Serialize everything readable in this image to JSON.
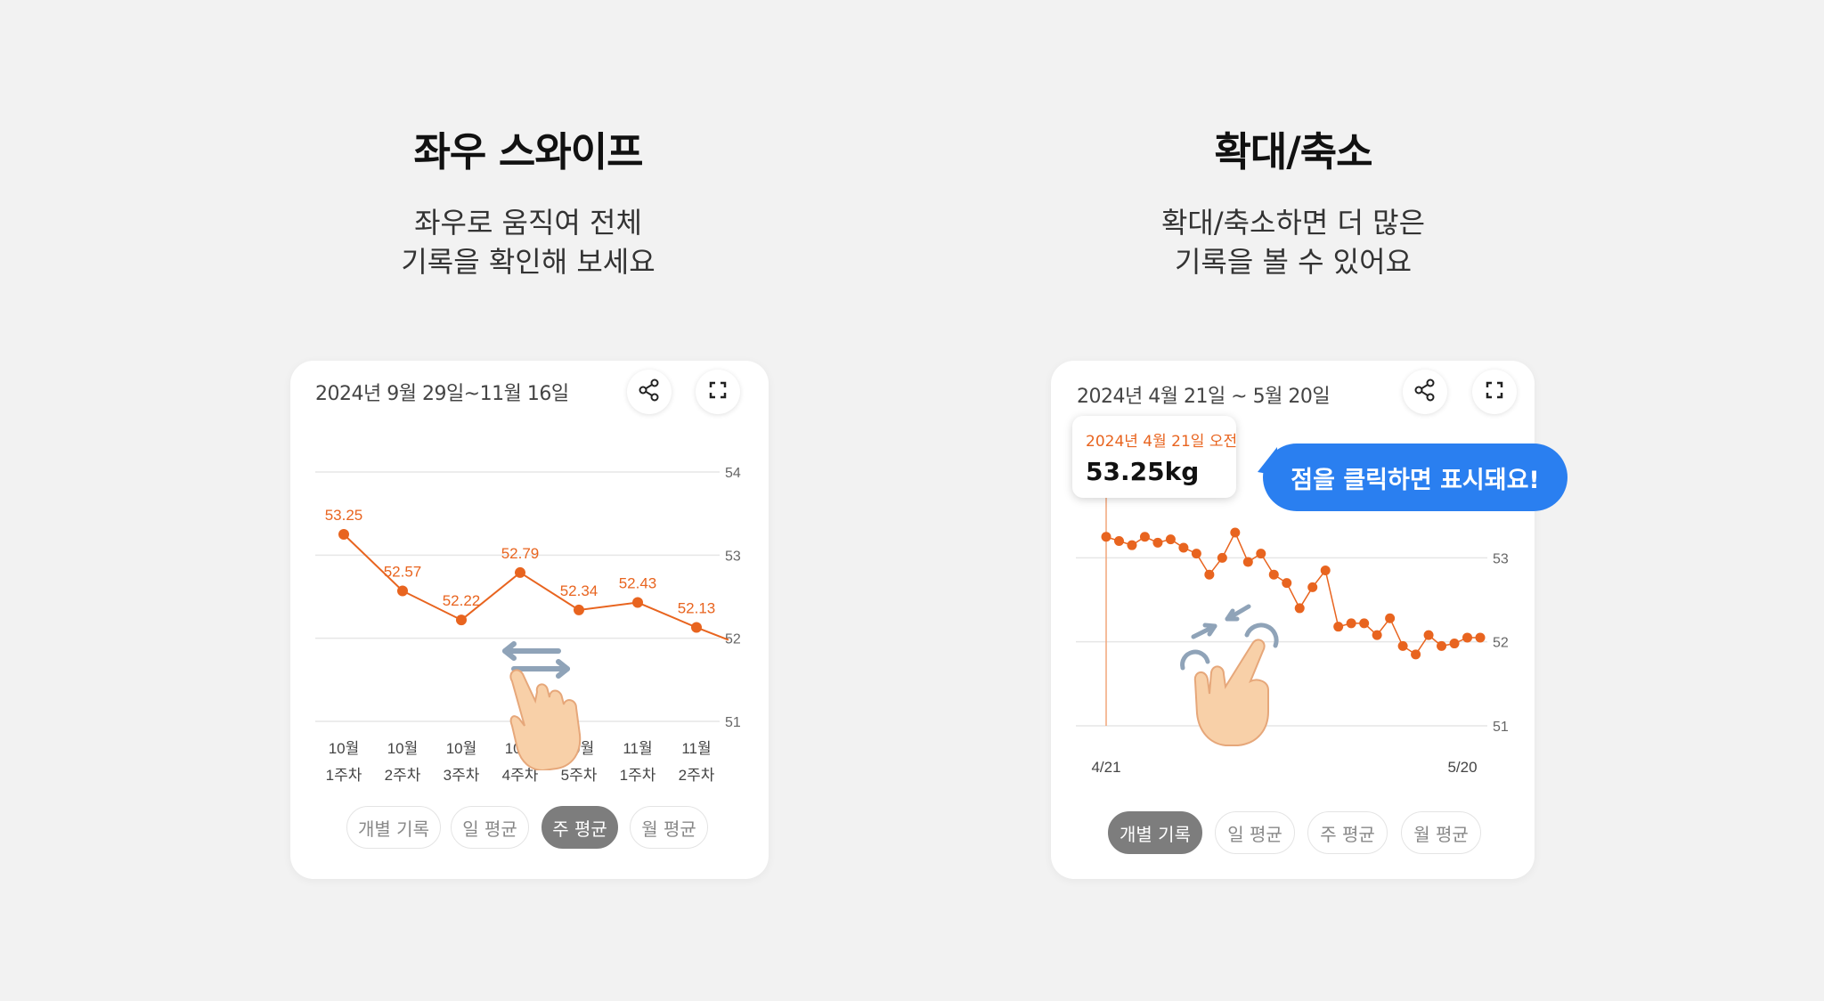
{
  "panels": [
    {
      "title": "좌우 스와이프",
      "desc_line1": "좌우로 움직여 전체",
      "desc_line2": "기록을 확인해 보세요",
      "range_label": "2024년 9월 29일~11월 16일",
      "share_icon": "share-icon",
      "expand_icon": "expand-icon",
      "hand_icon": "swipe-hand-icon",
      "tabs": [
        {
          "label": "개별 기록",
          "active": false
        },
        {
          "label": "일 평균",
          "active": false
        },
        {
          "label": "주 평균",
          "active": true
        },
        {
          "label": "월 평균",
          "active": false
        }
      ],
      "chart_data": {
        "type": "line",
        "categories": [
          [
            "10월",
            "1주차"
          ],
          [
            "10월",
            "2주차"
          ],
          [
            "10월",
            "3주차"
          ],
          [
            "10월",
            "4주차"
          ],
          [
            "10월",
            "5주차"
          ],
          [
            "11월",
            "1주차"
          ],
          [
            "11월",
            "2주차"
          ]
        ],
        "values": [
          53.25,
          52.57,
          52.22,
          52.79,
          52.34,
          52.43,
          52.13
        ],
        "value_labels": [
          "53.25",
          "52.57",
          "52.22",
          "52.79",
          "52.34",
          "52.43",
          "52.13"
        ],
        "y_ticks": [
          "54",
          "53",
          "52",
          "51"
        ],
        "ylim": [
          51,
          54
        ],
        "grid": true,
        "color": "#e8641f"
      }
    },
    {
      "title": "확대/축소",
      "desc_line1": "확대/축소하면 더 많은",
      "desc_line2": "기록을 볼 수 있어요",
      "range_label": "2024년 4월 21일 ~ 5월 20일",
      "share_icon": "share-icon",
      "expand_icon": "expand-icon",
      "hand_icon": "pinch-hand-icon",
      "tooltip": {
        "date": "2024년 4월 21일 오전",
        "value": "53.25kg"
      },
      "bubble": "점을 클릭하면 표시돼요!",
      "tabs": [
        {
          "label": "개별 기록",
          "active": true
        },
        {
          "label": "일 평균",
          "active": false
        },
        {
          "label": "주 평균",
          "active": false
        },
        {
          "label": "월 평균",
          "active": false
        }
      ],
      "chart_data": {
        "type": "line",
        "x_labels": [
          "4/21",
          "5/20"
        ],
        "y_ticks": [
          "53",
          "52",
          "51"
        ],
        "ylim": [
          51,
          54
        ],
        "grid": true,
        "color": "#e8641f",
        "values": [
          53.25,
          53.2,
          53.15,
          53.25,
          53.18,
          53.22,
          53.12,
          53.05,
          52.8,
          53.0,
          53.3,
          52.95,
          53.05,
          52.8,
          52.7,
          52.4,
          52.65,
          52.85,
          52.18,
          52.22,
          52.22,
          52.08,
          52.28,
          51.95,
          51.85,
          52.08,
          51.95,
          51.98,
          52.05,
          52.05
        ],
        "highlight_index": 0
      }
    }
  ]
}
